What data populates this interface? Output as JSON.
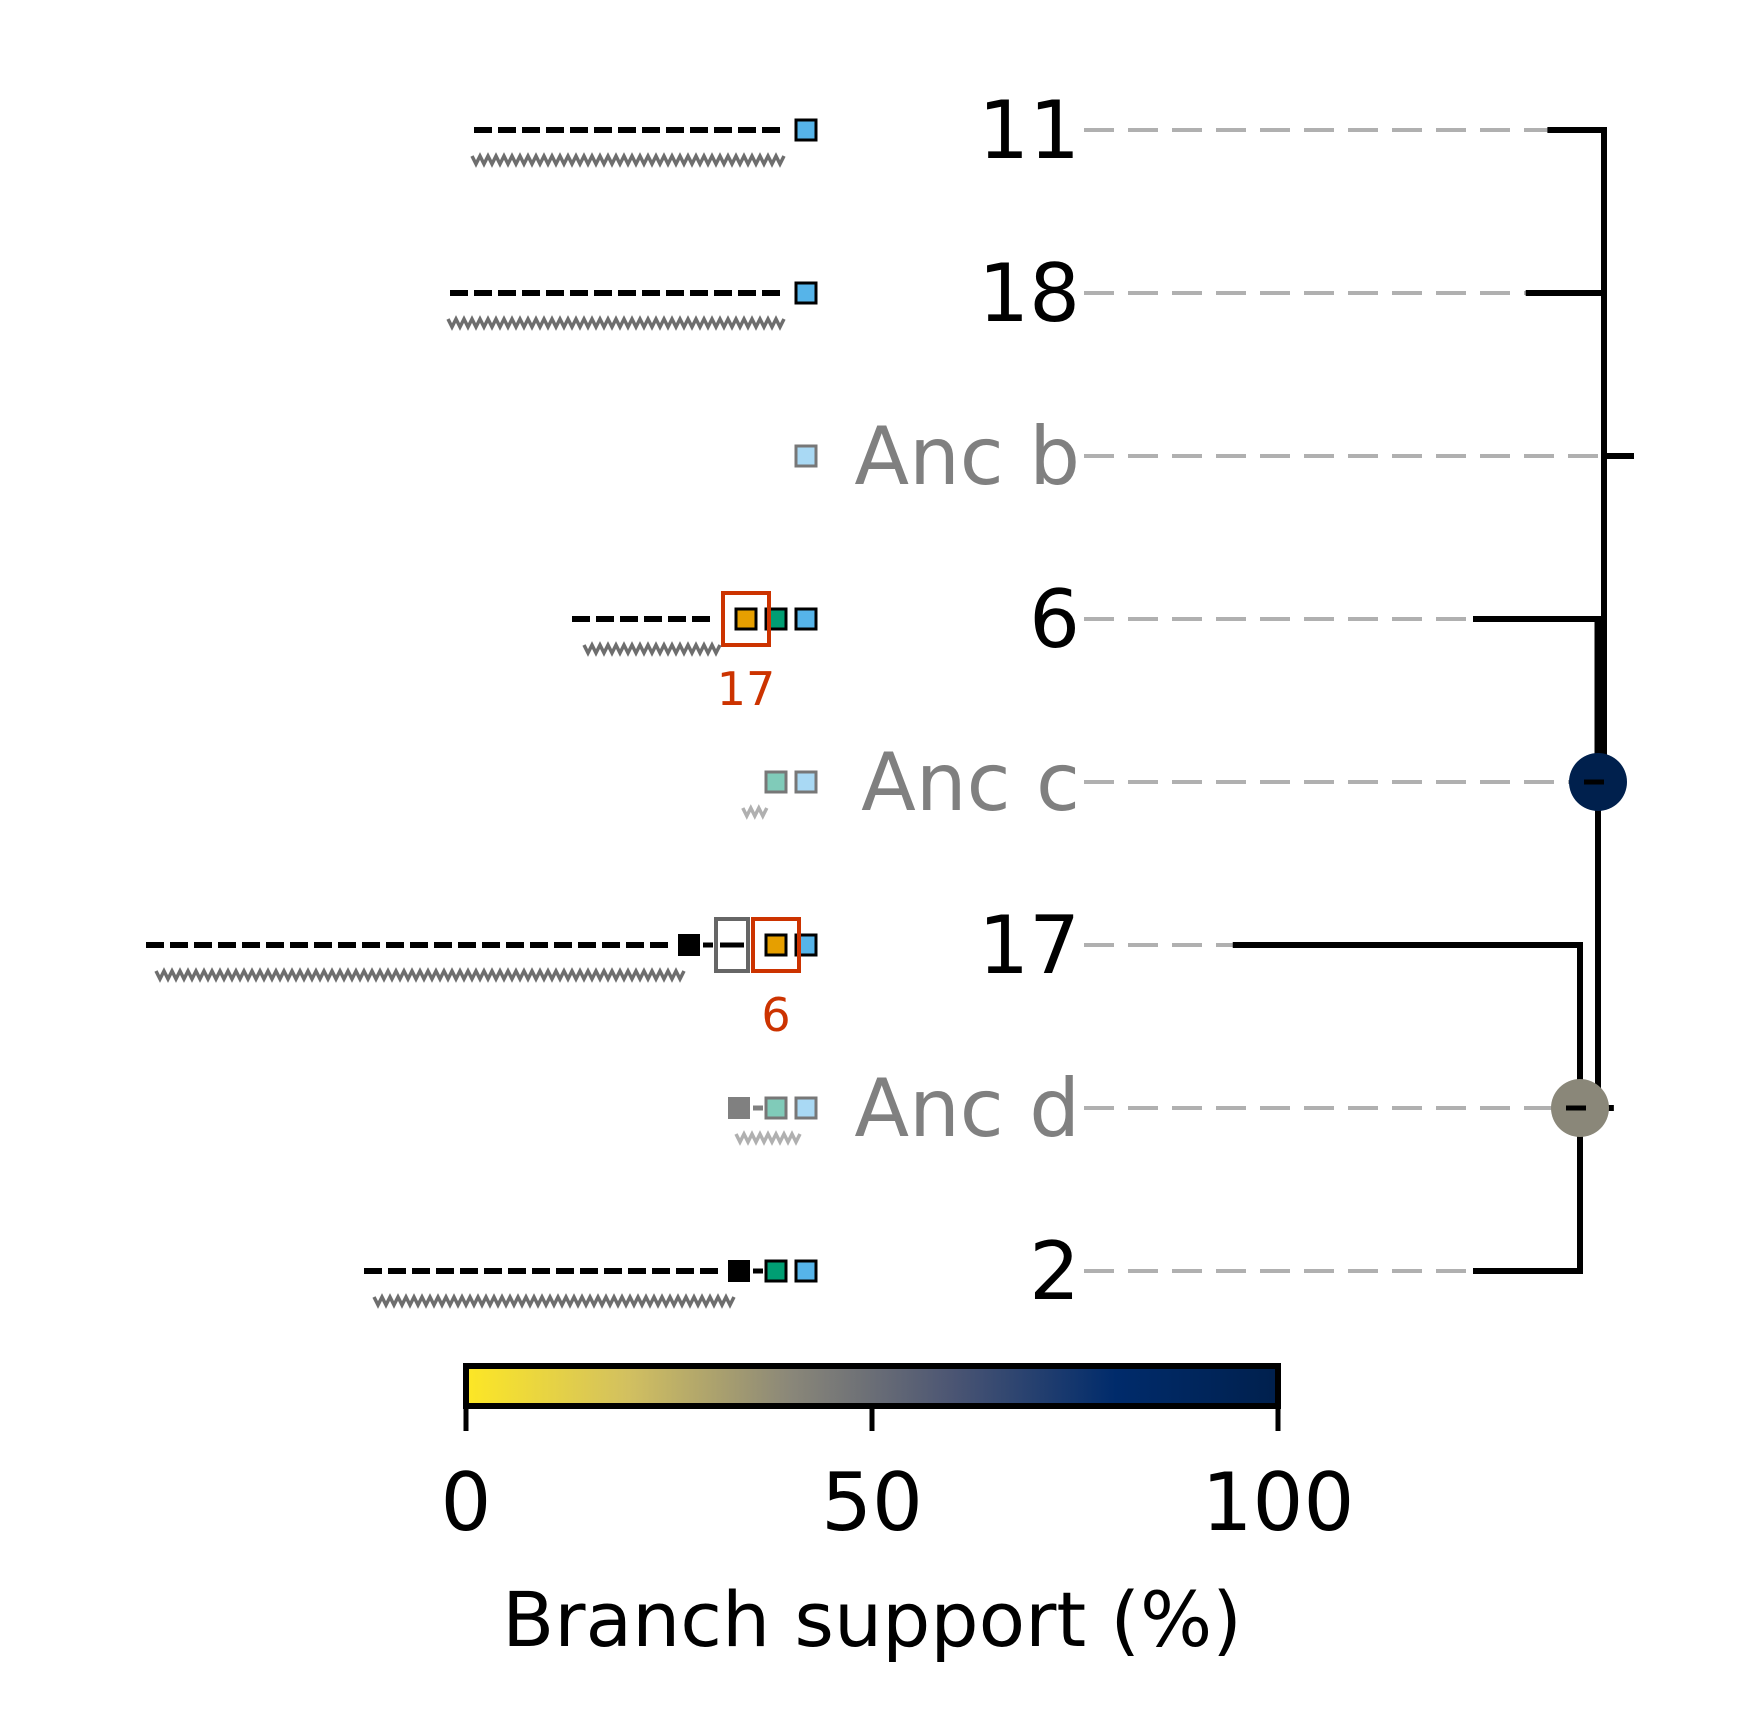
{
  "colors": {
    "tree": "#000000",
    "leader": "#b0b0b0",
    "ancestral_label": "#808080",
    "highlight": "#cc3300",
    "seg_orange": "#e69f00",
    "seg_green": "#009e73",
    "seg_blue": "#56b4e9",
    "seg_green_light": "#80cbb9",
    "seg_blue_light": "#a9d9f4",
    "colormap": [
      "#fde725",
      "#d2c060",
      "#8a8779",
      "#4b5573",
      "#002b6b",
      "#00204d"
    ]
  },
  "leaves": [
    {
      "label": "11",
      "ancestral": false,
      "dash_len": 13,
      "wave_len": 13,
      "wave_shade": "dark",
      "right_boxes": [
        "seg_blue"
      ],
      "black_box": false,
      "grey_open_box": false,
      "highlight_box": false,
      "marker_label": ""
    },
    {
      "label": "18",
      "ancestral": false,
      "dash_len": 14,
      "wave_len": 14,
      "wave_shade": "dark",
      "right_boxes": [
        "seg_blue"
      ],
      "black_box": false,
      "grey_open_box": false,
      "highlight_box": false,
      "marker_label": ""
    },
    {
      "label": "Anc b",
      "ancestral": true,
      "dash_len": 0,
      "wave_len": 0,
      "wave_shade": "",
      "right_boxes": [
        "seg_blue_light"
      ],
      "black_box": false,
      "grey_open_box": false,
      "highlight_box": false,
      "marker_label": ""
    },
    {
      "label": "6",
      "ancestral": false,
      "dash_len": 6,
      "wave_len": 5.5,
      "wave_shade": "dark",
      "right_boxes": [
        "seg_orange",
        "seg_green",
        "seg_blue"
      ],
      "black_box": false,
      "grey_open_box": false,
      "highlight_box": true,
      "highlight_on": "seg_orange",
      "marker_label": "17"
    },
    {
      "label": "Anc c",
      "ancestral": true,
      "dash_len": 0,
      "wave_len": 0.8,
      "wave_shade": "light",
      "right_boxes": [
        "seg_green_light",
        "seg_blue_light"
      ],
      "black_box": false,
      "grey_open_box": false,
      "highlight_box": false,
      "marker_label": ""
    },
    {
      "label": "17",
      "ancestral": false,
      "dash_len": 22,
      "wave_len": 22,
      "wave_shade": "dark",
      "right_boxes": [
        "seg_orange",
        "seg_blue"
      ],
      "black_box": true,
      "grey_open_box": true,
      "highlight_box": true,
      "highlight_on": "seg_orange",
      "marker_label": "6"
    },
    {
      "label": "Anc d",
      "ancestral": true,
      "dash_len": 2,
      "wave_len": 2.5,
      "wave_shade": "light",
      "right_boxes": [
        "seg_green_light",
        "seg_blue_light"
      ],
      "black_box": true,
      "black_box_grey": true,
      "grey_open_box": false,
      "highlight_box": false,
      "marker_label": ""
    },
    {
      "label": "2",
      "ancestral": false,
      "dash_len": 15,
      "wave_len": 15,
      "wave_shade": "dark",
      "right_boxes": [
        "seg_green",
        "seg_blue"
      ],
      "black_box": true,
      "grey_open_box": false,
      "highlight_box": false,
      "marker_label": ""
    }
  ],
  "tree": {
    "tip_depth": {
      "11": 0.48,
      "18": 0.34,
      "Anc b": 1.0,
      "6": 0.0,
      "Anc c": 0.95,
      "17": -1.55,
      "Anc d": 0.87,
      "2": 0.0
    },
    "nodes": [
      {
        "name": "root",
        "children": [
          "11",
          "18",
          "Anc b",
          "inner_c"
        ],
        "support": null
      },
      {
        "name": "inner_c",
        "children": [
          "6",
          "Anc c",
          "inner_d"
        ],
        "support": 100
      },
      {
        "name": "inner_d",
        "children": [
          "17",
          "Anc d",
          "2"
        ],
        "support": 40
      }
    ]
  },
  "colorbar": {
    "min": 0,
    "max": 100,
    "ticks": [
      "0",
      "50",
      "100"
    ],
    "title": "Branch support (%)"
  }
}
